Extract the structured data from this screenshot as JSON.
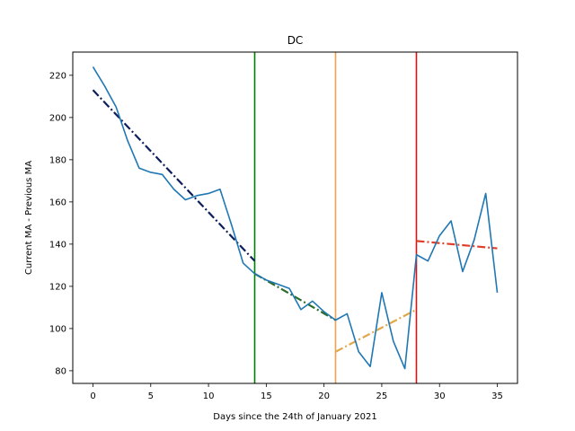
{
  "chart_data": {
    "type": "line",
    "title": "DC",
    "xlabel": "Days since the 24th of January 2021",
    "ylabel": "Current MA - Previous MA",
    "xlim": [
      -1.75,
      36.75
    ],
    "ylim": [
      74,
      231
    ],
    "xticks": [
      0,
      5,
      10,
      15,
      20,
      25,
      30,
      35
    ],
    "yticks": [
      80,
      100,
      120,
      140,
      160,
      180,
      200,
      220
    ],
    "grid": false,
    "series": [
      {
        "color": "#1f77b4",
        "x": [
          0,
          1,
          2,
          3,
          4,
          5,
          6,
          7,
          8,
          9,
          10,
          11,
          12,
          13,
          14,
          15,
          16,
          17,
          18,
          19,
          20,
          21,
          22,
          23,
          24,
          25,
          26,
          27,
          28,
          29,
          30,
          31,
          32,
          33,
          34,
          35
        ],
        "y": [
          224,
          215,
          205,
          189,
          176,
          174,
          173,
          166,
          161,
          163,
          164,
          166,
          149,
          131,
          126,
          123,
          121,
          119,
          109,
          113,
          108,
          104,
          107,
          89,
          82,
          117,
          94,
          81,
          135,
          132,
          144,
          151,
          127,
          142,
          164,
          117
        ]
      }
    ],
    "trendlines": [
      {
        "color": "#0c1f5c",
        "style": "dashdot",
        "x": [
          0,
          14
        ],
        "y": [
          213,
          132
        ]
      },
      {
        "color": "#2a6e2a",
        "style": "dashdot",
        "x": [
          14,
          21
        ],
        "y": [
          126,
          104
        ]
      },
      {
        "color": "#e0a84a",
        "style": "dashdot",
        "x": [
          21,
          28
        ],
        "y": [
          89,
          109
        ]
      },
      {
        "color": "#e0402a",
        "style": "dashdot",
        "x": [
          28,
          35
        ],
        "y": [
          141.5,
          138
        ]
      }
    ],
    "vlines": [
      {
        "x": 14,
        "color": "#008000"
      },
      {
        "x": 21,
        "color": "#f0a050"
      },
      {
        "x": 28,
        "color": "#e01010"
      }
    ]
  }
}
